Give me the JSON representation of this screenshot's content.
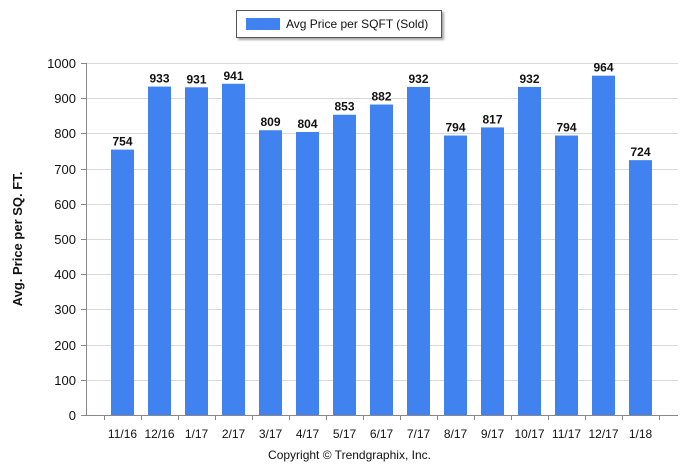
{
  "chart_data": {
    "type": "bar",
    "ylabel": "Avg. Price per SQ. FT.",
    "xlabel": "",
    "ylim": [
      0,
      1000
    ],
    "yticks": [
      0,
      100,
      200,
      300,
      400,
      500,
      600,
      700,
      800,
      900,
      1000
    ],
    "grid": "horizontal",
    "legend_position": "top-center",
    "categories": [
      "11/16",
      "12/16",
      "1/17",
      "2/17",
      "3/17",
      "4/17",
      "5/17",
      "6/17",
      "7/17",
      "8/17",
      "9/17",
      "10/17",
      "11/17",
      "12/17",
      "1/18"
    ],
    "series": [
      {
        "name": "Avg Price per SQFT (Sold)",
        "color": "#3F82F0",
        "values": [
          754,
          933,
          931,
          941,
          809,
          804,
          853,
          882,
          932,
          794,
          817,
          932,
          794,
          964,
          724
        ]
      }
    ]
  },
  "footer": {
    "copyright": "Copyright © Trendgraphix, Inc."
  }
}
